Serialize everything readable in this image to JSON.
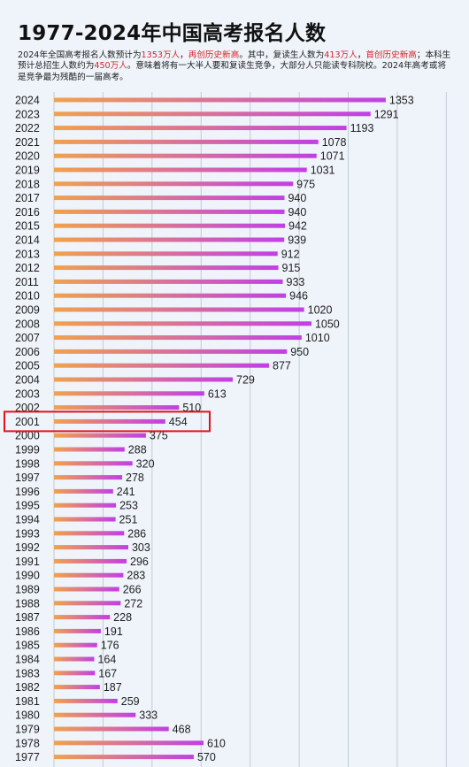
{
  "title": "1977-2024年中国高考报名人数",
  "description": {
    "p1": "2024年全国高考报名人数预计为",
    "v1": "1353万人",
    "p2": "，",
    "v2": "再创历史新高",
    "p3": "。其中，复读生人数为",
    "v3": "413万人",
    "p4": "，",
    "v4": "首创历史新高",
    "p5": "；本科生预计总招生人数约为",
    "v5": "450万人",
    "p6": "。意味着将有一大半人要和复读生竞争，大部分人只能读专科院校。2024年高考或将是竞争最为残酷的一届高考。"
  },
  "colors": {
    "background": "#eef4fa",
    "bar_start": "#f0a24e",
    "bar_end": "#c13fe6",
    "highlight_box": "#e0131b",
    "highlight_text": "#d6262b"
  },
  "highlight_year": "2001",
  "chart_data": {
    "type": "bar",
    "orientation": "horizontal",
    "categories": [
      "2024",
      "2023",
      "2022",
      "2021",
      "2020",
      "2019",
      "2018",
      "2017",
      "2016",
      "2015",
      "2014",
      "2013",
      "2012",
      "2011",
      "2010",
      "2009",
      "2008",
      "2007",
      "2006",
      "2005",
      "2004",
      "2003",
      "2002",
      "2001",
      "2000",
      "1999",
      "1998",
      "1997",
      "1996",
      "1995",
      "1994",
      "1993",
      "1992",
      "1991",
      "1990",
      "1989",
      "1988",
      "1987",
      "1986",
      "1985",
      "1984",
      "1983",
      "1982",
      "1981",
      "1980",
      "1979",
      "1978",
      "1977"
    ],
    "values": [
      1353,
      1291,
      1193,
      1078,
      1071,
      1031,
      975,
      940,
      940,
      942,
      939,
      912,
      915,
      933,
      946,
      1020,
      1050,
      1010,
      950,
      877,
      729,
      613,
      510,
      454,
      375,
      288,
      320,
      278,
      241,
      253,
      251,
      286,
      303,
      296,
      283,
      266,
      272,
      228,
      191,
      176,
      164,
      167,
      187,
      259,
      333,
      468,
      610,
      570
    ],
    "xlim": [
      0,
      1700
    ],
    "grid": true,
    "unit": "万人"
  }
}
